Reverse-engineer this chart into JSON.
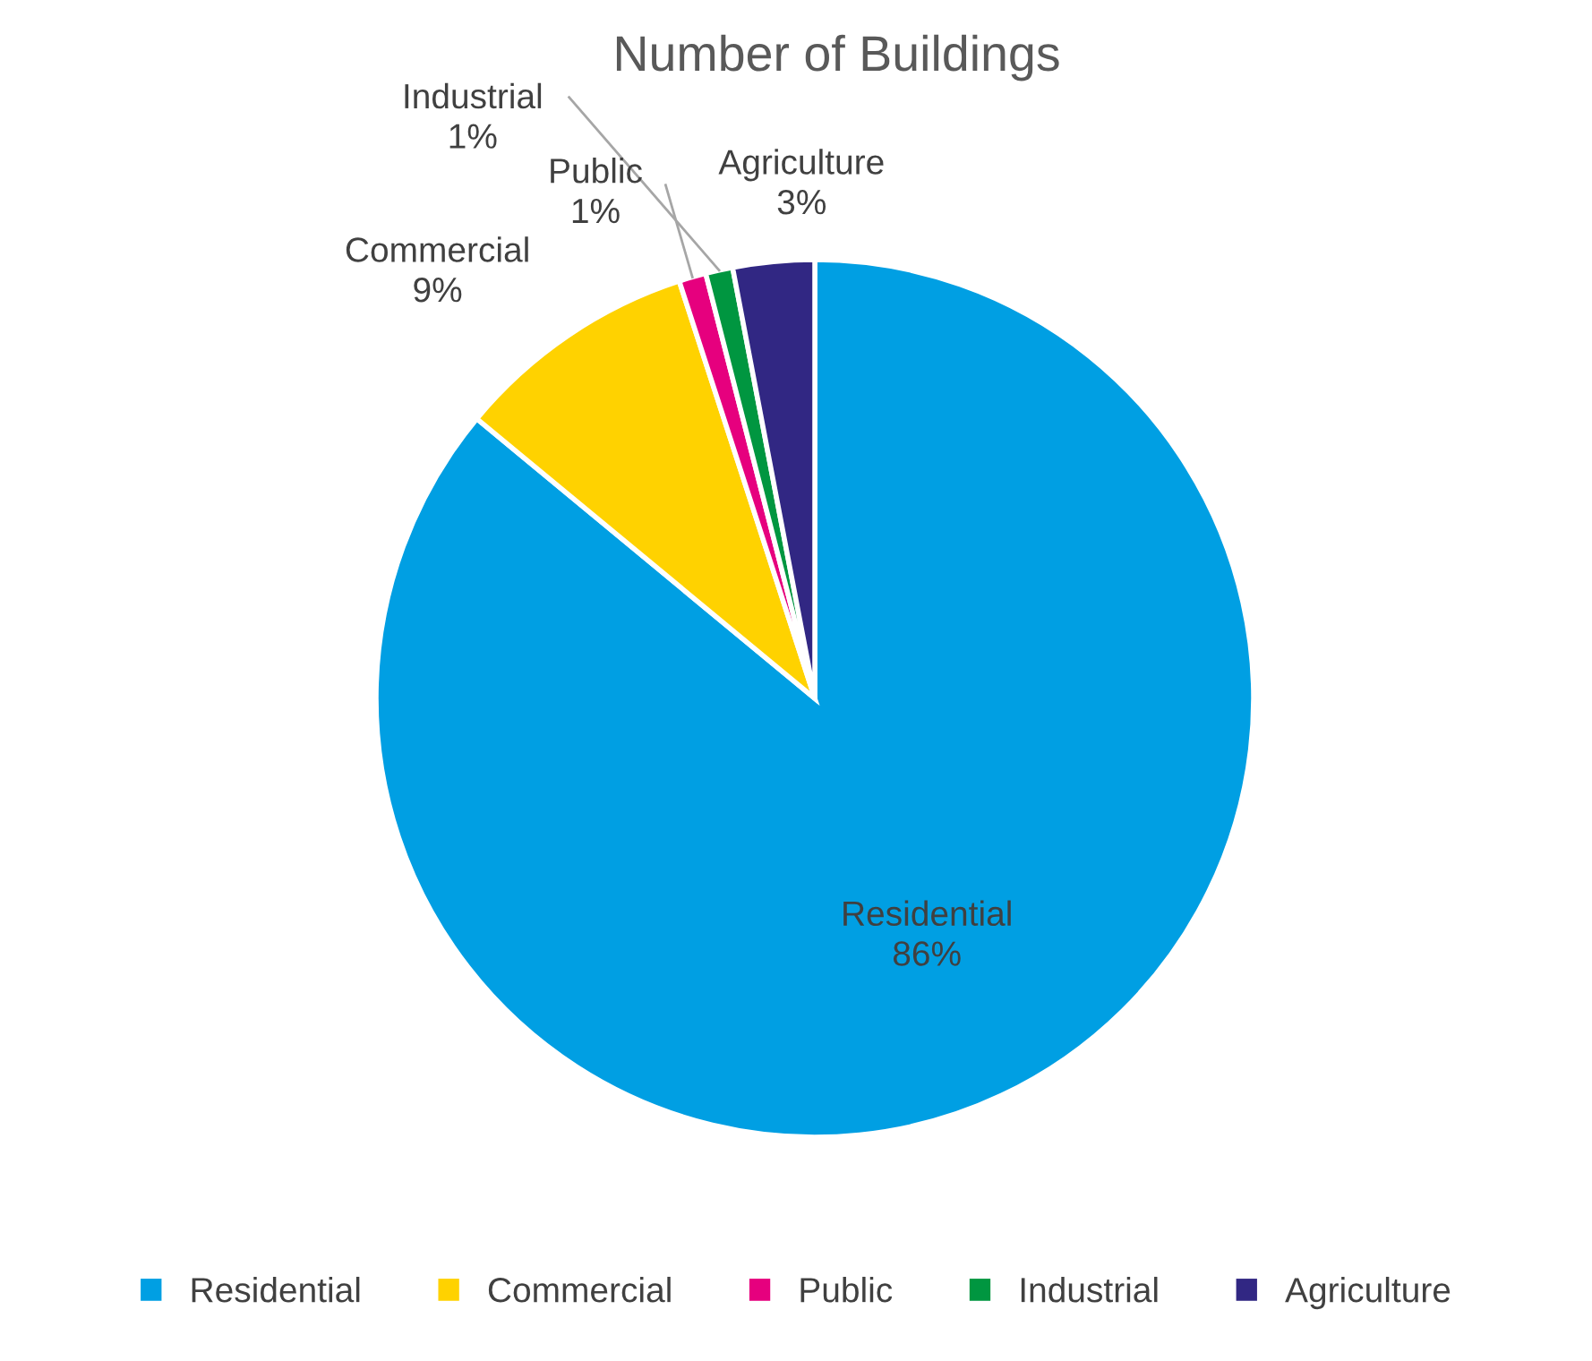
{
  "chart_data": {
    "type": "pie",
    "title": "Number of Buildings",
    "categories": [
      "Residential",
      "Commercial",
      "Public",
      "Industrial",
      "Agriculture"
    ],
    "values": [
      86,
      9,
      1,
      1,
      3
    ],
    "colors": [
      "#009fe3",
      "#ffd200",
      "#e6007e",
      "#009640",
      "#312783"
    ],
    "value_labels": [
      "86%",
      "9%",
      "1%",
      "1%",
      "3%"
    ],
    "legend": "bottom"
  }
}
